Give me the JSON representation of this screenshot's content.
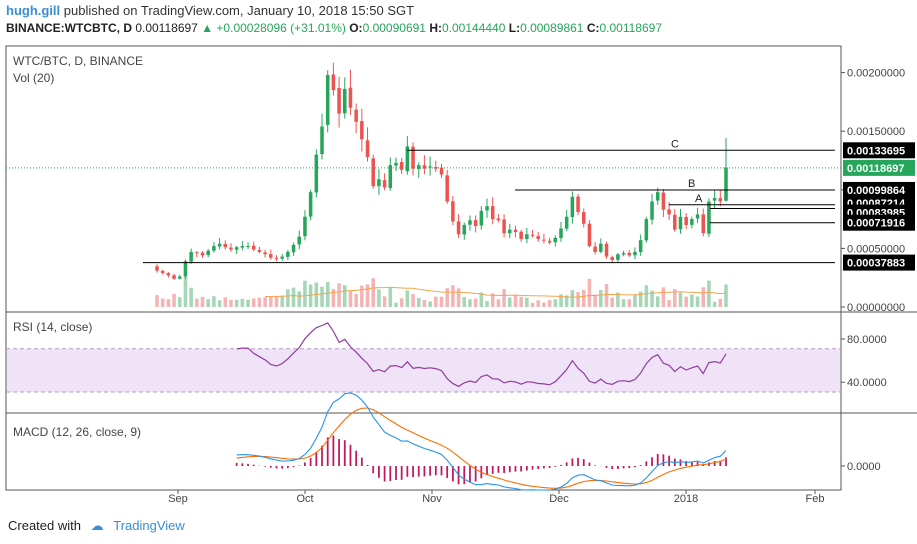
{
  "header": {
    "author": "hugh.gill",
    "published_text": "published on TradingView.com, January 10, 2018 15:50 SGT",
    "symbol": "BINANCE:WTCBTC, D",
    "last": "0.00118697",
    "change": "+0.00028096 (+31.01%)",
    "o_label": "O:",
    "o_value": "0.00090691",
    "h_label": "H:",
    "h_value": "0.00144440",
    "l_label": "L:",
    "l_value": "0.00089861",
    "c_label": "C:",
    "c_value": "0.00118697"
  },
  "panes": {
    "main_title": "WTC/BTC, D, BINANCE",
    "vol_title": "Vol (20)",
    "rsi_title": "RSI (14, close)",
    "macd_title": "MACD (12, 26, close, 9)"
  },
  "footer": {
    "created_with": "Created with",
    "brand": "TradingView"
  },
  "colors": {
    "up": "#26a65b",
    "down": "#ef5350",
    "ma": "#f3a44a",
    "rsi": "#8e3e9e",
    "rsi_band": "#f0e2f7",
    "macd": "#2196f3",
    "signal": "#ff6d00",
    "hist": "#c2185b"
  },
  "chart_data": [
    {
      "type": "candlestick",
      "title": "WTC/BTC, D, BINANCE",
      "x_ticks": [
        "Sep",
        "Oct",
        "Nov",
        "Dec",
        "2018",
        "Feb"
      ],
      "y_ticks": [
        "0.00200000",
        "0.00150000",
        "0.00100000",
        "0.00050000",
        "0.00000000"
      ],
      "ylim": [
        0,
        0.00215
      ],
      "level_lines": [
        {
          "label": "C",
          "value": 0.00133695
        },
        {
          "label": "B",
          "value": 0.00099864
        },
        {
          "label": "A",
          "value": 0.00087214
        },
        {
          "label": "",
          "value": 0.00083985
        },
        {
          "label": "",
          "value": 0.00071916
        },
        {
          "label": "",
          "value": 0.00037883
        }
      ],
      "price_labels": [
        "0.00133695",
        "0.00118697",
        "0.00099864",
        "0.00087214",
        "0.00083985",
        "0.00071916",
        "0.00037883"
      ],
      "last_price": 0.00118697,
      "close": [
        0.00031,
        0.00029,
        0.00027,
        0.00024,
        0.00026,
        0.00039,
        0.00047,
        0.00046,
        0.00044,
        0.00048,
        0.00052,
        0.00054,
        0.00051,
        0.00049,
        0.00051,
        0.00052,
        0.00052,
        0.00049,
        0.00047,
        0.00045,
        0.00042,
        0.00041,
        0.00043,
        0.00047,
        0.00053,
        0.0006,
        0.00077,
        0.00098,
        0.0013,
        0.00154,
        0.00198,
        0.00185,
        0.00165,
        0.00186,
        0.0017,
        0.00158,
        0.00143,
        0.00128,
        0.00103,
        0.00109,
        0.00102,
        0.00121,
        0.00123,
        0.00117,
        0.00137,
        0.00118,
        0.00121,
        0.00118,
        0.0012,
        0.00118,
        0.00113,
        0.0009,
        0.00073,
        0.00062,
        0.0007,
        0.00074,
        0.00069,
        0.00082,
        0.00086,
        0.00075,
        0.00074,
        0.00063,
        0.00066,
        0.00064,
        0.00058,
        0.00062,
        0.00061,
        0.00058,
        0.00057,
        0.00055,
        0.00059,
        0.00067,
        0.00077,
        0.00094,
        0.00081,
        0.00071,
        0.00052,
        0.00047,
        0.00054,
        0.00043,
        0.0004,
        0.00045,
        0.00046,
        0.00044,
        0.00047,
        0.00057,
        0.00075,
        0.0009,
        0.00098,
        0.00083,
        0.00079,
        0.00066,
        0.00077,
        0.0007,
        0.00075,
        0.00079,
        0.00063,
        0.0009,
        0.00093,
        0.0009,
        0.00119
      ],
      "volume_sma_label": "Vol (20)",
      "rsi": {
        "name": "RSI (14, close)",
        "ticks": [
          "80.0000",
          "40.0000"
        ],
        "band": [
          30,
          70
        ]
      },
      "macd": {
        "name": "MACD (12, 26, close, 9)",
        "ticks": [
          "0.0000"
        ]
      }
    }
  ]
}
